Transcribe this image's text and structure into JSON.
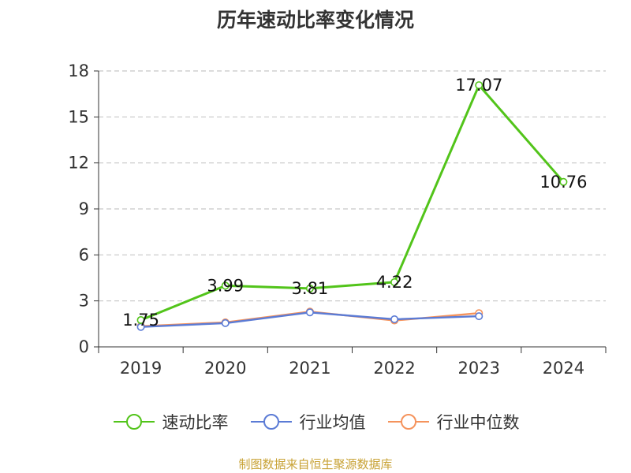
{
  "source_note": "制图数据来自恒生聚源数据库",
  "chart_data": {
    "type": "line",
    "title": "历年速动比率变化情况",
    "categories": [
      "2019",
      "2020",
      "2021",
      "2022",
      "2023",
      "2024"
    ],
    "ylim": [
      0,
      18
    ],
    "yticks": [
      "0",
      "3",
      "6",
      "9",
      "12",
      "15",
      "18"
    ],
    "grid": "horizontal-dashed",
    "legend_position": "bottom",
    "series": [
      {
        "name": "速动比率",
        "color": "#52c41a",
        "values": [
          1.75,
          3.99,
          3.81,
          4.22,
          17.07,
          10.76
        ],
        "labels": [
          "1.75",
          "3.99",
          "3.81",
          "4.22",
          "17.07",
          "10.76"
        ]
      },
      {
        "name": "行业均值",
        "color": "#5b7bd5",
        "values": [
          1.3,
          1.55,
          2.25,
          1.8,
          2.0,
          null
        ]
      },
      {
        "name": "行业中位数",
        "color": "#f5935c",
        "values": [
          1.35,
          1.6,
          2.3,
          1.72,
          2.2,
          null
        ]
      }
    ]
  }
}
